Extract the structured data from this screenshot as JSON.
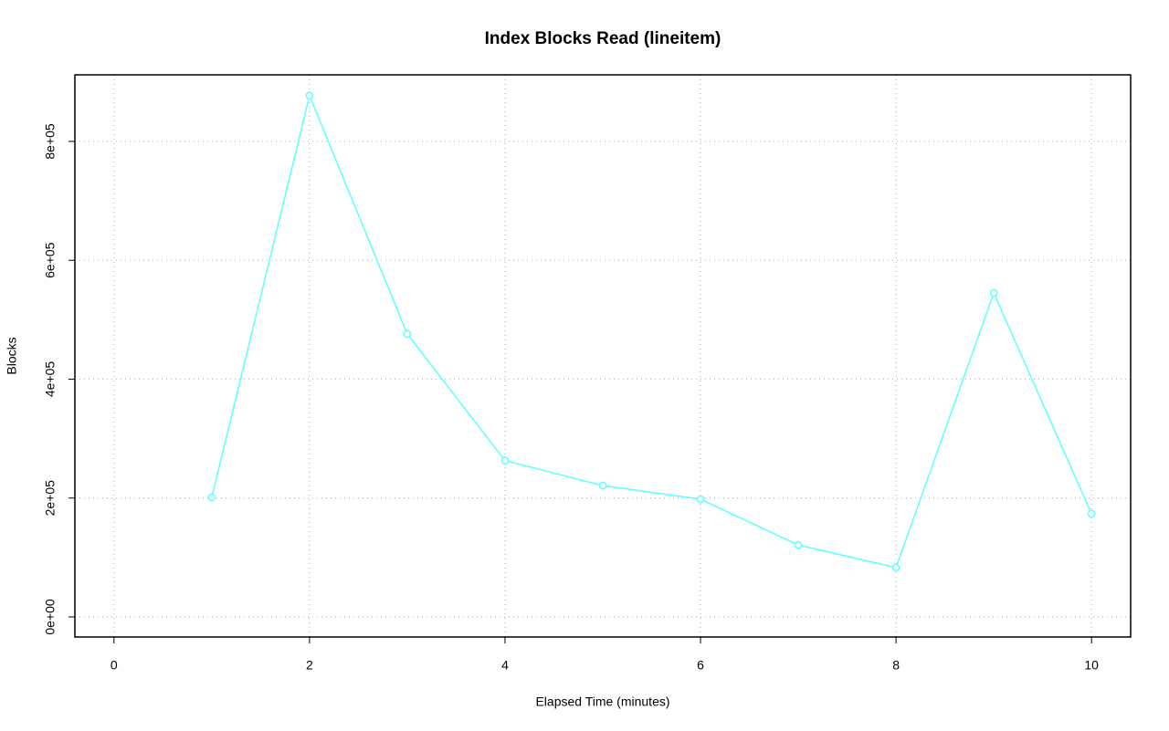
{
  "chart_data": {
    "type": "line",
    "title": "Index Blocks Read (lineitem)",
    "x_label": "Elapsed Time (minutes)",
    "y_label": "Blocks",
    "x": [
      1,
      2,
      3,
      4,
      5,
      6,
      7,
      8,
      9,
      10
    ],
    "series": [
      {
        "name": "Blocks",
        "color": "#66ffff",
        "values": [
          201000,
          877000,
          476000,
          263000,
          221000,
          198000,
          121000,
          83000,
          545000,
          173500
        ]
      }
    ],
    "xlim": [
      -0.4,
      10.4
    ],
    "xticks": [
      0,
      2,
      4,
      6,
      8,
      10
    ],
    "ylim": [
      -33800,
      912000
    ],
    "yticks": [
      {
        "value": 0,
        "label": "0e+00"
      },
      {
        "value": 200000,
        "label": "2e+05"
      },
      {
        "value": 400000,
        "label": "4e+05"
      },
      {
        "value": 600000,
        "label": "6e+05"
      },
      {
        "value": 800000,
        "label": "8e+05"
      }
    ],
    "grid": true
  }
}
